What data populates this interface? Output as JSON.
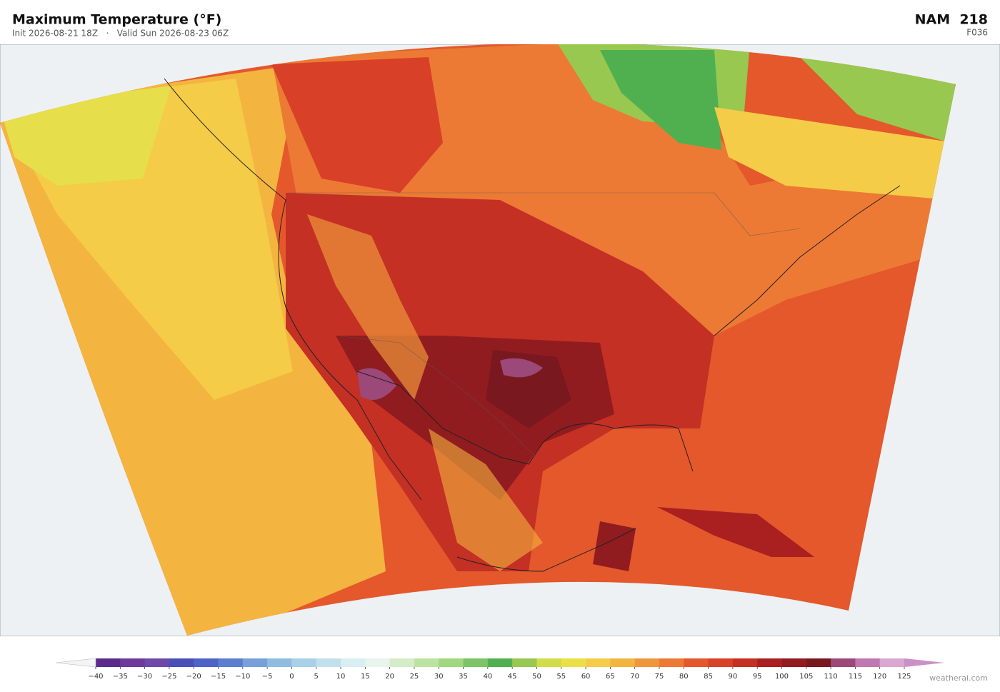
{
  "header": {
    "title": "Maximum Temperature  (°F)",
    "subtitle": "Init 2026-08-21 18Z   ·   Valid Sun 2026-08-23 06Z",
    "model": "NAM  218",
    "forecast_hour": "F036"
  },
  "colorbar": {
    "ticks": [
      {
        "value": -40,
        "label": "−40"
      },
      {
        "value": -35,
        "label": "−35"
      },
      {
        "value": -30,
        "label": "−30"
      },
      {
        "value": -25,
        "label": "−25"
      },
      {
        "value": -20,
        "label": "−20"
      },
      {
        "value": -15,
        "label": "−15"
      },
      {
        "value": -10,
        "label": "−10"
      },
      {
        "value": -5,
        "label": "−5"
      },
      0,
      5,
      10,
      15,
      20,
      25,
      30,
      35,
      40,
      45,
      50,
      55,
      60,
      65,
      70,
      75,
      80,
      85,
      90,
      95,
      100,
      105,
      110,
      115,
      120,
      125
    ],
    "colors": [
      "#5b2a8c",
      "#6e3a9a",
      "#7048a8",
      "#4a4fb8",
      "#4e62c8",
      "#5a7fd0",
      "#78a0d8",
      "#8fbce0",
      "#a8d0e8",
      "#c0e0ee",
      "#d8eef2",
      "#e8f4ec",
      "#d4ecc8",
      "#bce4a0",
      "#a0d880",
      "#7cc468",
      "#50b050",
      "#98c850",
      "#d0dc48",
      "#ece048",
      "#f4cc48",
      "#f4b440",
      "#f0963a",
      "#ec7a34",
      "#e4582c",
      "#d84028",
      "#c43024",
      "#aa2020",
      "#901c20",
      "#7a1820",
      "#9c4878",
      "#c078b0",
      "#d8a8d0"
    ],
    "under_color": "#f4f4f4",
    "over_color": "#cc90c8"
  },
  "credit": "weatherai.com"
}
